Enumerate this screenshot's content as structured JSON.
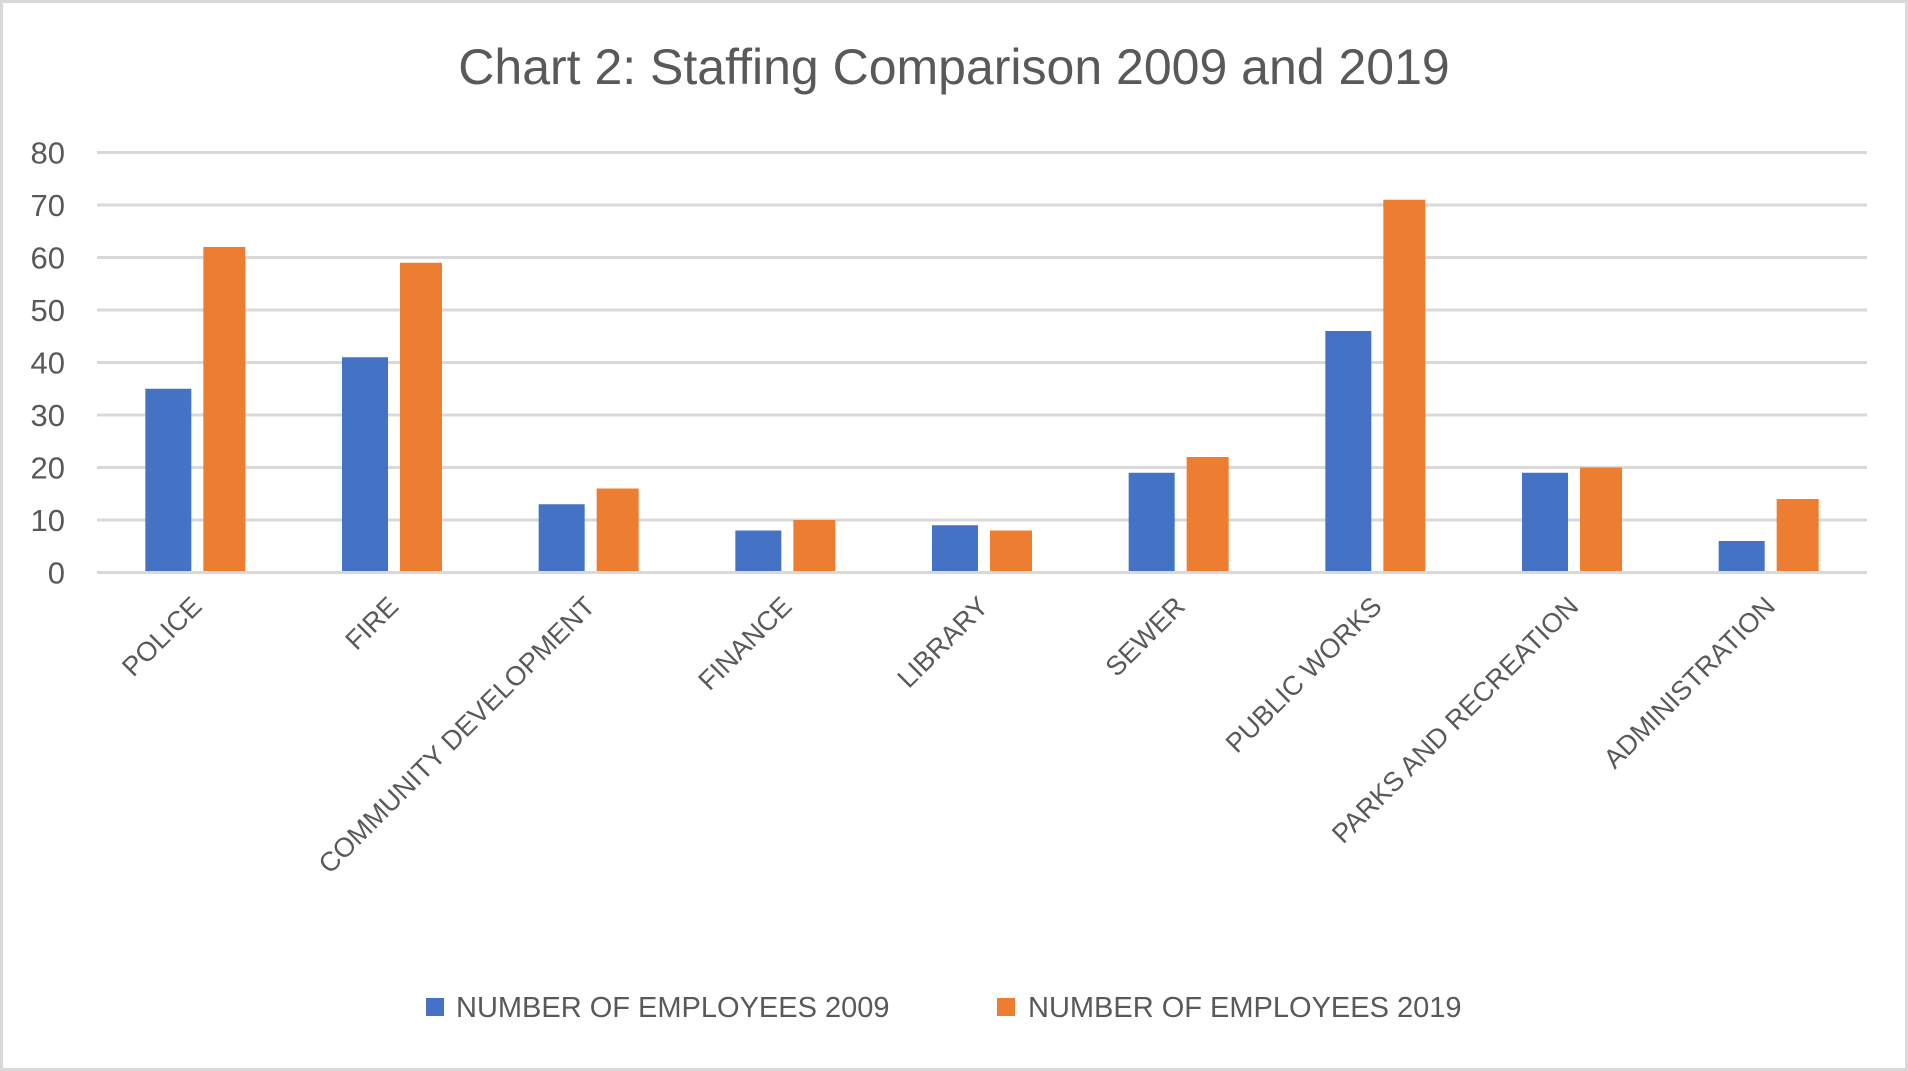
{
  "chart_data": {
    "type": "bar",
    "title": "Chart 2:  Staffing Comparison 2009 and 2019",
    "xlabel": "",
    "ylabel": "",
    "categories": [
      "POLICE",
      "FIRE",
      "COMMUNITY DEVELOPMENT",
      "FINANCE",
      "LIBRARY",
      "SEWER",
      "PUBLIC WORKS",
      "PARKS AND RECREATION",
      "ADMINISTRATION"
    ],
    "series": [
      {
        "name": "NUMBER OF EMPLOYEES 2009",
        "color": "#4472c4",
        "values": [
          35,
          41,
          13,
          8,
          9,
          19,
          46,
          19,
          6
        ]
      },
      {
        "name": "NUMBER OF EMPLOYEES 2019",
        "color": "#ed7d31",
        "values": [
          62,
          59,
          16,
          10,
          8,
          22,
          71,
          20,
          14
        ]
      }
    ],
    "ylim": [
      0,
      80
    ],
    "yticks": [
      "0",
      "10",
      "20",
      "30",
      "40",
      "50",
      "60",
      "70",
      "80"
    ],
    "grid": true,
    "legend_position": "bottom"
  }
}
